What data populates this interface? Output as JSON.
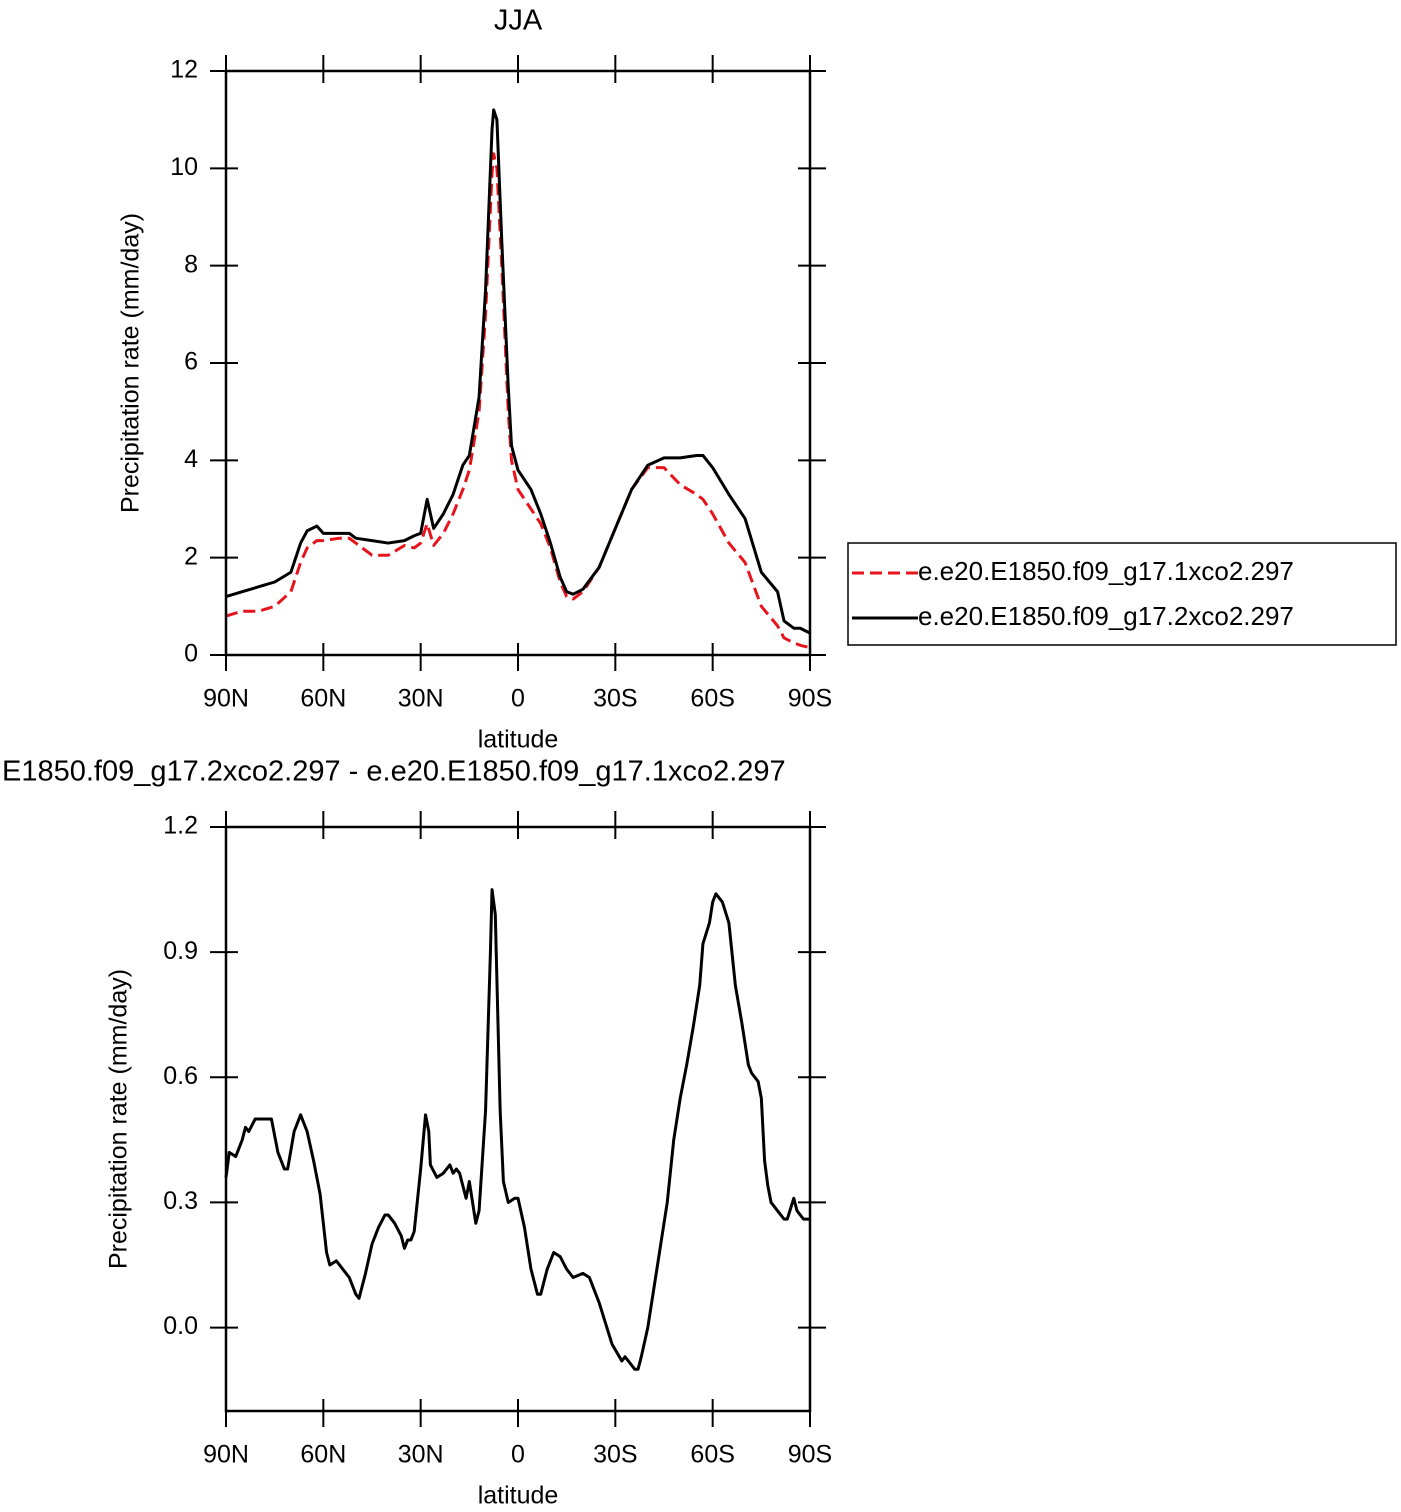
{
  "chart_data": [
    {
      "type": "line",
      "title": "JJA",
      "xlabel": "latitude",
      "ylabel": "Precipitation rate (mm/day)",
      "x": [
        90,
        85,
        80,
        75,
        70,
        67,
        65,
        62,
        60,
        55,
        52,
        50,
        45,
        40,
        35,
        32,
        30,
        28,
        26,
        23,
        20,
        17,
        15,
        12,
        10,
        8,
        7.5,
        6.5,
        5,
        3,
        2,
        0,
        -2,
        -4,
        -7,
        -10,
        -13,
        -15,
        -17,
        -20,
        -25,
        -30,
        -35,
        -40,
        -45,
        -50,
        -55,
        -57,
        -60,
        -65,
        -70,
        -75,
        -80,
        -82,
        -85,
        -87,
        -90
      ],
      "series": [
        {
          "name": "e.e20.E1850.f09_g17.1xco2.297",
          "color": "#e8141c",
          "line_style": "dashed",
          "values": [
            0.8,
            0.9,
            0.9,
            1.0,
            1.3,
            1.9,
            2.2,
            2.35,
            2.35,
            2.4,
            2.4,
            2.3,
            2.05,
            2.05,
            2.25,
            2.2,
            2.3,
            2.7,
            2.25,
            2.5,
            2.9,
            3.4,
            3.8,
            5.0,
            7.0,
            9.9,
            10.3,
            10.0,
            8.0,
            5.0,
            4.0,
            3.4,
            3.2,
            3.0,
            2.7,
            2.2,
            1.5,
            1.2,
            1.15,
            1.3,
            1.8,
            2.6,
            3.4,
            3.85,
            3.85,
            3.5,
            3.3,
            3.2,
            2.9,
            2.3,
            1.9,
            1.0,
            0.6,
            0.35,
            0.25,
            0.2,
            0.15
          ]
        },
        {
          "name": "e.e20.E1850.f09_g17.2xco2.297",
          "color": "#000000",
          "line_style": "solid",
          "values": [
            1.2,
            1.3,
            1.4,
            1.5,
            1.7,
            2.3,
            2.55,
            2.65,
            2.5,
            2.5,
            2.5,
            2.4,
            2.35,
            2.3,
            2.35,
            2.45,
            2.5,
            3.2,
            2.6,
            2.9,
            3.3,
            3.9,
            4.1,
            5.3,
            7.5,
            10.8,
            11.2,
            11.0,
            8.5,
            5.5,
            4.3,
            3.8,
            3.6,
            3.4,
            2.9,
            2.3,
            1.6,
            1.3,
            1.25,
            1.35,
            1.8,
            2.6,
            3.4,
            3.9,
            4.05,
            4.05,
            4.1,
            4.1,
            3.85,
            3.3,
            2.8,
            1.7,
            1.3,
            0.7,
            0.55,
            0.55,
            0.45
          ]
        }
      ],
      "xlim": [
        90,
        -90
      ],
      "xticks": [
        {
          "value": 90,
          "label": "90N"
        },
        {
          "value": 60,
          "label": "60N"
        },
        {
          "value": 30,
          "label": "30N"
        },
        0,
        {
          "value": -30,
          "label": "30S"
        },
        {
          "value": -60,
          "label": "60S"
        },
        {
          "value": -90,
          "label": "90S"
        }
      ],
      "ylim": [
        0,
        12
      ],
      "yticks": [
        0,
        2,
        4,
        6,
        8,
        10,
        12
      ],
      "legend": "right"
    },
    {
      "type": "line",
      "title": "E1850.f09_g17.2xco2.297 - e.e20.E1850.f09_g17.1xco2.297",
      "xlabel": "latitude",
      "ylabel": "Precipitation rate (mm/day)",
      "color": "#000000",
      "x": [
        90,
        89,
        87,
        85,
        84,
        83,
        81,
        78,
        76,
        74,
        72,
        71,
        69,
        67,
        65,
        63,
        61,
        59,
        58,
        56,
        54,
        52,
        50,
        49,
        47,
        45,
        43,
        41,
        40,
        38,
        36,
        35,
        34,
        33,
        32,
        30,
        28.5,
        27.5,
        27,
        25,
        23,
        21,
        20,
        19,
        18,
        16,
        15,
        13,
        12,
        10,
        8.5,
        8,
        7,
        5.5,
        4.5,
        3,
        1,
        0,
        -2,
        -4,
        -6,
        -7,
        -9,
        -11,
        -13,
        -15,
        -17,
        -20,
        -22,
        -25,
        -27,
        -29,
        -32,
        -33,
        -35,
        -36,
        -37,
        -38,
        -40,
        -42,
        -44,
        -46,
        -48,
        -50,
        -52,
        -54,
        -56,
        -57,
        -59,
        -60,
        -61,
        -62,
        -63,
        -65,
        -67,
        -69,
        -71,
        -72,
        -74,
        -75,
        -76,
        -77,
        -78,
        -80,
        -82,
        -83,
        -85,
        -86,
        -88,
        -90
      ],
      "values": [
        0.36,
        0.42,
        0.41,
        0.45,
        0.48,
        0.47,
        0.5,
        0.5,
        0.5,
        0.42,
        0.38,
        0.38,
        0.47,
        0.51,
        0.47,
        0.4,
        0.32,
        0.18,
        0.15,
        0.16,
        0.14,
        0.12,
        0.08,
        0.07,
        0.13,
        0.2,
        0.24,
        0.27,
        0.27,
        0.25,
        0.22,
        0.19,
        0.21,
        0.21,
        0.23,
        0.38,
        0.51,
        0.47,
        0.39,
        0.36,
        0.37,
        0.39,
        0.37,
        0.38,
        0.37,
        0.31,
        0.35,
        0.25,
        0.28,
        0.52,
        0.9,
        1.05,
        0.99,
        0.52,
        0.35,
        0.3,
        0.31,
        0.31,
        0.24,
        0.14,
        0.08,
        0.08,
        0.14,
        0.18,
        0.17,
        0.14,
        0.12,
        0.13,
        0.12,
        0.06,
        0.01,
        -0.04,
        -0.08,
        -0.07,
        -0.09,
        -0.1,
        -0.1,
        -0.07,
        0.0,
        0.1,
        0.2,
        0.3,
        0.45,
        0.55,
        0.63,
        0.72,
        0.82,
        0.92,
        0.97,
        1.02,
        1.04,
        1.03,
        1.02,
        0.97,
        0.82,
        0.73,
        0.63,
        0.61,
        0.59,
        0.55,
        0.4,
        0.34,
        0.3,
        0.28,
        0.26,
        0.26,
        0.31,
        0.28,
        0.26,
        0.26
      ],
      "xlim": [
        90,
        -90
      ],
      "xticks": [
        {
          "value": 90,
          "label": "90N"
        },
        {
          "value": 60,
          "label": "60N"
        },
        {
          "value": 30,
          "label": "30N"
        },
        0,
        {
          "value": -30,
          "label": "30S"
        },
        {
          "value": -60,
          "label": "60S"
        },
        {
          "value": -90,
          "label": "90S"
        }
      ],
      "ylim": [
        -0.2,
        1.2
      ],
      "yticks": [
        {
          "value": 0,
          "label": "0.0"
        },
        0.3,
        0.6,
        0.9,
        1.2
      ]
    }
  ]
}
